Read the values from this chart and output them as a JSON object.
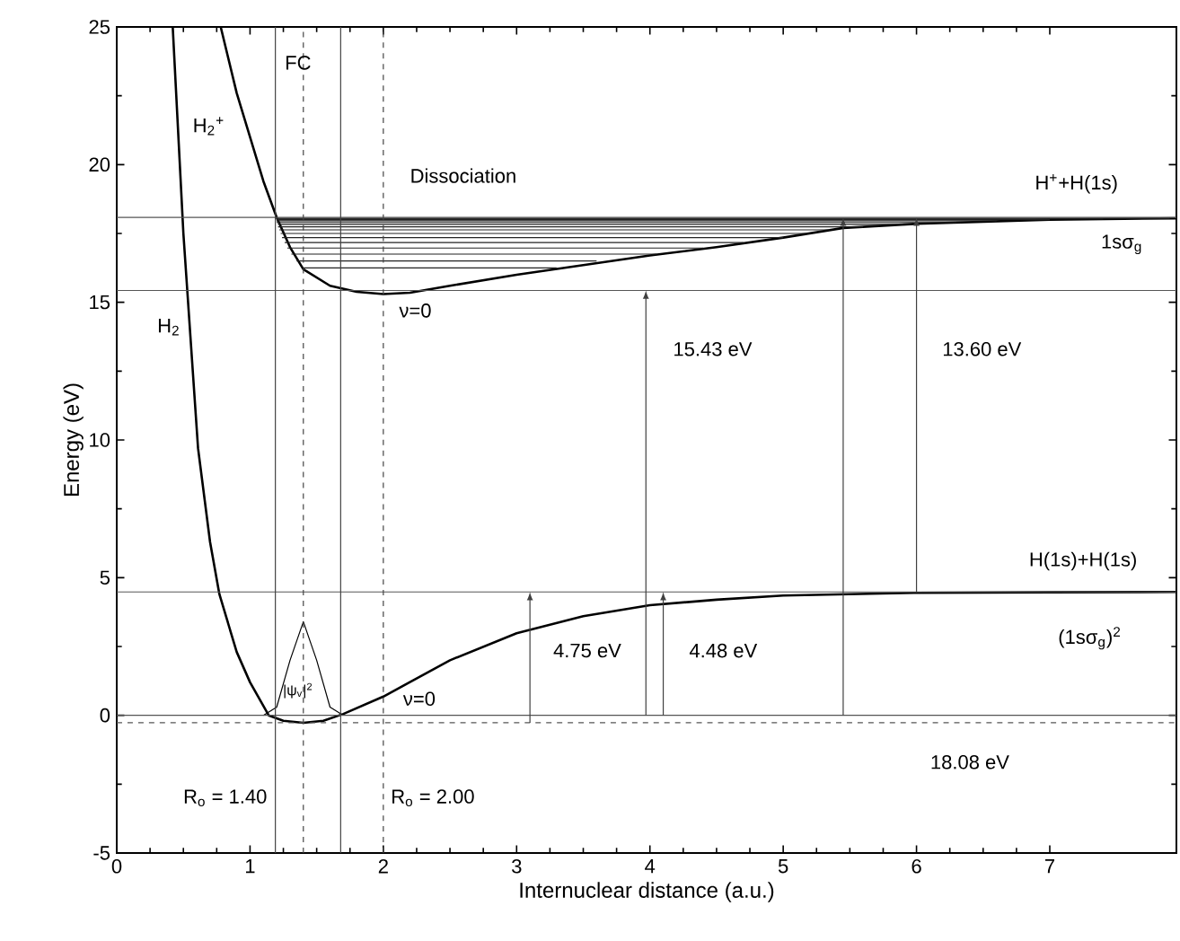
{
  "chart_data": {
    "type": "line",
    "xlabel": "Internuclear distance (a.u.)",
    "ylabel": "Energy (eV)",
    "xlim": [
      0,
      7.95
    ],
    "ylim": [
      -5,
      25
    ],
    "xticks": [
      0,
      1,
      2,
      3,
      4,
      5,
      6,
      7
    ],
    "yticks": [
      -5,
      0,
      5,
      10,
      15,
      20,
      25
    ],
    "grid": false,
    "series": [
      {
        "color": "#000000",
        "x": [
          0.42,
          0.5,
          0.61,
          0.7,
          0.77,
          0.9,
          1.0,
          1.14,
          1.25,
          1.4,
          1.55,
          1.7,
          2.0,
          2.5,
          3.0,
          3.5,
          4.0,
          4.5,
          5.0,
          6.0,
          7.0,
          7.95
        ],
        "values": [
          25,
          17.5,
          9.7,
          6.3,
          4.4,
          2.3,
          1.2,
          0,
          -0.2,
          -0.27,
          -0.2,
          0.05,
          0.68,
          2.0,
          2.98,
          3.6,
          4.0,
          4.2,
          4.35,
          4.45,
          4.47,
          4.48
        ]
      },
      {
        "color": "#000000",
        "x": [
          0.78,
          0.9,
          1.0,
          1.1,
          1.2,
          1.3,
          1.4,
          1.6,
          1.8,
          2.0,
          2.2,
          2.5,
          3.0,
          3.5,
          4.0,
          4.5,
          5.0,
          5.45,
          6.0,
          7.0,
          7.95
        ],
        "values": [
          25,
          22.6,
          21.0,
          19.4,
          18.08,
          17.0,
          16.2,
          15.6,
          15.38,
          15.3,
          15.35,
          15.6,
          16.0,
          16.35,
          16.7,
          17.0,
          17.35,
          17.7,
          17.85,
          18.0,
          18.05
        ]
      },
      {
        "color": "#000000",
        "x": [
          1.1,
          1.2,
          1.3,
          1.4,
          1.5,
          1.6,
          1.7
        ],
        "values": [
          0,
          0.3,
          2.0,
          3.4,
          2.0,
          0.3,
          0
        ]
      },
      {
        "color": "#222222",
        "x": [
          1.4,
          3.3
        ],
        "values": [
          16.25,
          16.25
        ]
      },
      {
        "color": "#222222",
        "x": [
          1.35,
          3.6
        ],
        "values": [
          16.5,
          16.5
        ]
      },
      {
        "color": "#222222",
        "x": [
          1.31,
          4.05
        ],
        "values": [
          16.75,
          16.75
        ]
      },
      {
        "color": "#222222",
        "x": [
          1.28,
          4.4
        ],
        "values": [
          16.97,
          16.97
        ]
      },
      {
        "color": "#222222",
        "x": [
          1.26,
          4.7
        ],
        "values": [
          17.17,
          17.17
        ]
      },
      {
        "color": "#222222",
        "x": [
          1.24,
          5.0
        ],
        "values": [
          17.35,
          17.35
        ]
      },
      {
        "color": "#222222",
        "x": [
          1.23,
          5.2
        ],
        "values": [
          17.5,
          17.5
        ]
      },
      {
        "color": "#222222",
        "x": [
          1.22,
          5.35
        ],
        "values": [
          17.63,
          17.63
        ]
      },
      {
        "color": "#222222",
        "x": [
          1.21,
          5.6
        ],
        "values": [
          17.74,
          17.74
        ]
      },
      {
        "color": "#222222",
        "x": [
          1.21,
          5.9
        ],
        "values": [
          17.83,
          17.83
        ]
      },
      {
        "color": "#222222",
        "x": [
          1.2,
          6.3
        ],
        "values": [
          17.9,
          17.9
        ]
      },
      {
        "color": "#222222",
        "x": [
          1.2,
          6.6
        ],
        "values": [
          17.96,
          17.96
        ]
      },
      {
        "color": "#222222",
        "x": [
          1.2,
          7.0
        ],
        "values": [
          18.0,
          18.0
        ]
      },
      {
        "color": "#222222",
        "x": [
          1.2,
          7.4
        ],
        "values": [
          18.03,
          18.03
        ]
      },
      {
        "color": "#222222",
        "x": [
          1.2,
          7.9
        ],
        "values": [
          18.05,
          18.05
        ]
      }
    ],
    "ref_lines": [
      {
        "axis": "y",
        "value": 0,
        "color": "#555555"
      },
      {
        "axis": "y",
        "value": 4.48,
        "color": "#555555"
      },
      {
        "axis": "y",
        "value": 15.43,
        "color": "#555555"
      },
      {
        "axis": "y",
        "value": 18.08,
        "color": "#555555"
      },
      {
        "axis": "y",
        "value": -0.27,
        "color": "#555555",
        "line_style": "dashed"
      },
      {
        "axis": "x",
        "value": 1.19,
        "color": "#444444"
      },
      {
        "axis": "x",
        "value": 1.68,
        "color": "#444444"
      },
      {
        "axis": "x",
        "value": 1.4,
        "color": "#444444",
        "line_style": "dashed",
        "label": "R$_{o}$ = 1.40"
      },
      {
        "axis": "x",
        "value": 2.0,
        "color": "#444444",
        "line_style": "dashed",
        "label": "R$_{o}$ = 2.00"
      }
    ],
    "annotations": [
      "FC",
      "H$_{2}$$^{+}$",
      "H$_{2}$",
      "Dissociation",
      "H$^{+}$+H(1s)",
      "1sσ$_{g}$",
      "ν=0",
      "15.43 eV",
      "13.60 eV",
      "H(1s)+H(1s)",
      "(1sσ$_{g}$)$^{2}$",
      "4.75 eV",
      "4.48 eV",
      "18.08 eV",
      "ν=0",
      "|ψ$_{v}$|$^{2}$"
    ]
  }
}
